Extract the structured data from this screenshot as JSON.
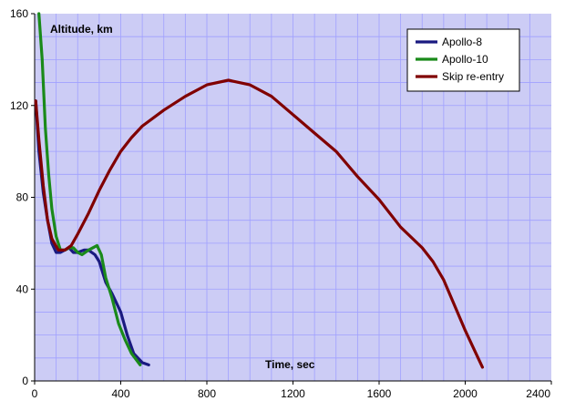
{
  "chart_data": {
    "type": "line",
    "title": "",
    "xlabel": "Time, sec",
    "ylabel": "Altitude, km",
    "xlim": [
      0,
      2400
    ],
    "ylim": [
      0,
      160
    ],
    "x_ticks": [
      0,
      400,
      800,
      1200,
      1600,
      2000,
      2400
    ],
    "y_ticks": [
      0,
      40,
      80,
      120,
      160
    ],
    "x_tick_labels": [
      "0",
      "400",
      "800",
      "1200",
      "1600",
      "2000",
      "2400"
    ],
    "y_tick_labels": [
      "0",
      "40",
      "80",
      "120",
      "160"
    ],
    "grid": true,
    "grid_minor_step": {
      "x": 100,
      "y": 10
    },
    "legend_position": "top-right",
    "series": [
      {
        "name": "Apollo-8",
        "color": "#1a1a80",
        "points": [
          [
            5,
            122
          ],
          [
            20,
            100
          ],
          [
            40,
            82
          ],
          [
            60,
            70
          ],
          [
            80,
            60
          ],
          [
            100,
            56
          ],
          [
            120,
            56
          ],
          [
            140,
            57
          ],
          [
            160,
            58
          ],
          [
            180,
            56
          ],
          [
            200,
            56
          ],
          [
            230,
            57
          ],
          [
            250,
            57
          ],
          [
            280,
            55
          ],
          [
            300,
            52
          ],
          [
            330,
            43
          ],
          [
            360,
            38
          ],
          [
            400,
            30
          ],
          [
            430,
            20
          ],
          [
            460,
            12
          ],
          [
            500,
            8
          ],
          [
            530,
            7
          ]
        ]
      },
      {
        "name": "Apollo-10",
        "color": "#1a8a1a",
        "points": [
          [
            20,
            160
          ],
          [
            35,
            140
          ],
          [
            50,
            110
          ],
          [
            65,
            90
          ],
          [
            80,
            75
          ],
          [
            100,
            63
          ],
          [
            120,
            57
          ],
          [
            140,
            57
          ],
          [
            160,
            58
          ],
          [
            180,
            58
          ],
          [
            200,
            56
          ],
          [
            220,
            55
          ],
          [
            250,
            57
          ],
          [
            270,
            58
          ],
          [
            290,
            59
          ],
          [
            310,
            55
          ],
          [
            330,
            45
          ],
          [
            360,
            36
          ],
          [
            390,
            25
          ],
          [
            420,
            18
          ],
          [
            450,
            12
          ],
          [
            490,
            7
          ]
        ]
      },
      {
        "name": "Skip re-entry",
        "color": "#800000",
        "points": [
          [
            5,
            122
          ],
          [
            20,
            105
          ],
          [
            40,
            85
          ],
          [
            60,
            70
          ],
          [
            80,
            62
          ],
          [
            110,
            57
          ],
          [
            140,
            57
          ],
          [
            170,
            59
          ],
          [
            200,
            64
          ],
          [
            250,
            73
          ],
          [
            300,
            83
          ],
          [
            350,
            92
          ],
          [
            400,
            100
          ],
          [
            450,
            106
          ],
          [
            500,
            111
          ],
          [
            600,
            118
          ],
          [
            700,
            124
          ],
          [
            800,
            129
          ],
          [
            900,
            131
          ],
          [
            1000,
            129
          ],
          [
            1100,
            124
          ],
          [
            1200,
            116
          ],
          [
            1300,
            108
          ],
          [
            1400,
            100
          ],
          [
            1500,
            89
          ],
          [
            1600,
            79
          ],
          [
            1700,
            67
          ],
          [
            1800,
            58
          ],
          [
            1850,
            52
          ],
          [
            1900,
            44
          ],
          [
            1950,
            33
          ],
          [
            2000,
            22
          ],
          [
            2050,
            12
          ],
          [
            2080,
            6
          ]
        ]
      }
    ]
  },
  "colors": {
    "plot_background": "#ccccf5",
    "gridline": "#a0a0ff",
    "page_background": "#ffffff"
  }
}
